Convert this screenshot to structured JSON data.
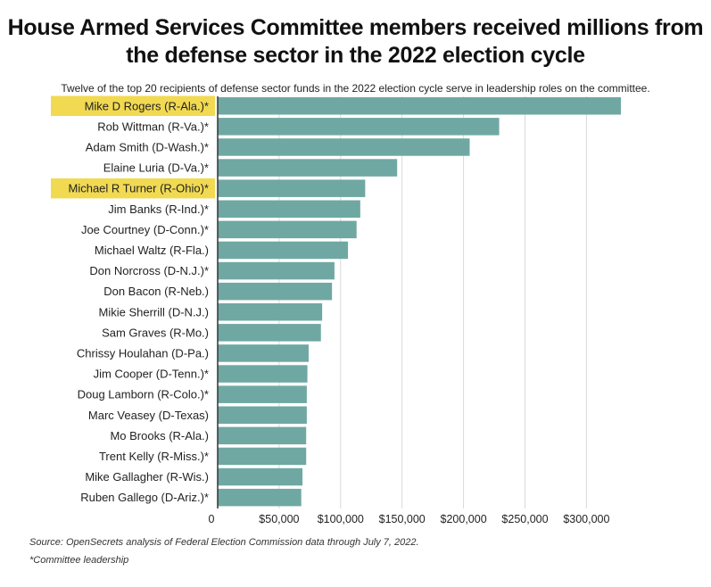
{
  "colors": {
    "bar": "#6fa8a3",
    "highlight": "#f1da52",
    "grid": "#d9d9d9",
    "axis": "#333333"
  },
  "chart_data": {
    "type": "bar",
    "orientation": "horizontal",
    "title": "House Armed Services Committee members received millions from the defense sector in the 2022 election cycle",
    "subtitle": "Twelve of the top 20 recipients of defense sector funds in the 2022 election cycle serve in leadership roles on the committee.",
    "categories": [
      "Mike D Rogers (R-Ala.)*",
      "Rob Wittman (R-Va.)*",
      "Adam Smith (D-Wash.)*",
      "Elaine Luria (D-Va.)*",
      "Michael R Turner (R-Ohio)*",
      "Jim Banks (R-Ind.)*",
      "Joe Courtney (D-Conn.)*",
      "Michael Waltz (R-Fla.)",
      "Don Norcross (D-N.J.)*",
      "Don Bacon (R-Neb.)",
      "Mikie Sherrill (D-N.J.)",
      "Sam Graves (R-Mo.)",
      "Chrissy Houlahan (D-Pa.)",
      "Jim Cooper (D-Tenn.)*",
      "Doug Lamborn (R-Colo.)*",
      "Marc Veasey (D-Texas)",
      "Mo Brooks (R-Ala.)",
      "Trent Kelly (R-Miss.)*",
      "Mike Gallagher (R-Wis.)",
      "Ruben Gallego (D-Ariz.)*"
    ],
    "values": [
      328000,
      229000,
      205000,
      146000,
      120000,
      116000,
      113000,
      106000,
      95000,
      93000,
      85000,
      84000,
      74000,
      73000,
      72500,
      72500,
      72000,
      72000,
      69000,
      68000
    ],
    "highlighted": [
      "Mike D Rogers (R-Ala.)*",
      "Michael R Turner (R-Ohio)*"
    ],
    "xlim": [
      0,
      340000
    ],
    "ticks": [
      0,
      50000,
      100000,
      150000,
      200000,
      250000,
      300000
    ],
    "tick_labels": [
      "0",
      "$50,000",
      "$100,000",
      "$150,000",
      "$200,000",
      "$250,000",
      "$300,000"
    ],
    "grid": true,
    "legend": "none"
  },
  "footer": {
    "source": "Source: OpenSecrets analysis of Federal Election Commission data through July 7, 2022.",
    "note": "*Committee leadership"
  }
}
